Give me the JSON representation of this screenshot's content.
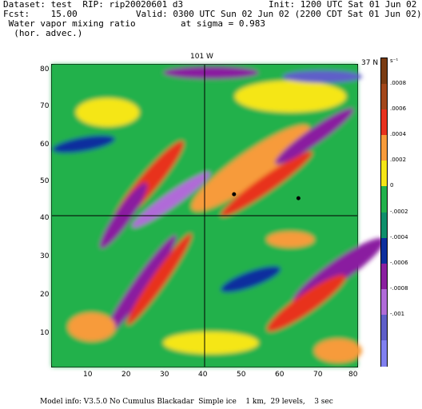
{
  "header": {
    "dataset": "Dataset: test  RIP: rip20020601 d3",
    "init": "Init: 1200 UTC Sat 01 Jun 02",
    "fcst": "Fcst:    15.00",
    "valid": "Valid: 0300 UTC Sun 02 Jun 02 (2200 CDT Sat 01 Jun 02)",
    "field": " Water vapor mixing ratio",
    "level": "at sigma = 0.983",
    "subfield": "  (hor. advec.)"
  },
  "plot": {
    "top_label": "101 W",
    "right_label": "37 N",
    "x_ticks": [
      "10",
      "20",
      "30",
      "40",
      "50",
      "60",
      "70",
      "80"
    ],
    "y_ticks": [
      "10",
      "20",
      "30",
      "40",
      "50",
      "60",
      "70",
      "80"
    ]
  },
  "colorbar": {
    "unit": "s⁻¹",
    "labels": [
      ".0008",
      ".0006",
      ".0004",
      ".0002",
      "0",
      "-.0002",
      "-.0004",
      "-.0006",
      "-.0008",
      "-.001"
    ],
    "colors": [
      "#7a3b12",
      "#a3471a",
      "#e8321e",
      "#f79b3a",
      "#f5e616",
      "#22b14c",
      "#0e8f6b",
      "#0c2f9e",
      "#8a1fa0",
      "#b06bd8",
      "#5e5ec9",
      "#8080f0"
    ]
  },
  "footer": {
    "model_info": "Model info: V3.5.0 No Cumulus Blackadar  Simple ice    1 km,  29 levels,    3 sec"
  }
}
